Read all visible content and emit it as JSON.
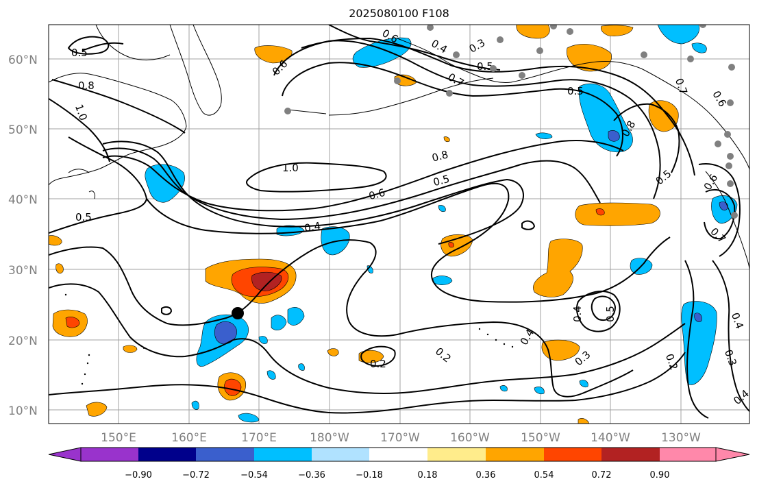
{
  "title": "2025080100 F108",
  "map": {
    "lat_labels": [
      "60°N",
      "50°N",
      "40°N",
      "30°N",
      "20°N",
      "10°N"
    ],
    "lon_labels": [
      "150°E",
      "160°E",
      "170°E",
      "180°W",
      "170°W",
      "160°W",
      "150°W",
      "140°W",
      "130°W"
    ],
    "contour_labels": [
      {
        "text": "0.5"
      },
      {
        "text": "0.8"
      },
      {
        "text": "1.0"
      },
      {
        "text": "0.6"
      },
      {
        "text": "0.6"
      },
      {
        "text": "0.4"
      },
      {
        "text": "0.3"
      },
      {
        "text": "0.5"
      },
      {
        "text": "0.7"
      },
      {
        "text": "0.5"
      },
      {
        "text": "0.8"
      },
      {
        "text": "0.7"
      },
      {
        "text": "0.6"
      },
      {
        "text": "1.0"
      },
      {
        "text": "0.8"
      },
      {
        "text": "0.5"
      },
      {
        "text": "0.6"
      },
      {
        "text": "0.4"
      },
      {
        "text": "0.5"
      },
      {
        "text": "0.5"
      },
      {
        "text": "0.6"
      },
      {
        "text": "0.7"
      },
      {
        "text": "0.4"
      },
      {
        "text": "0.5"
      },
      {
        "text": "0.4"
      },
      {
        "text": "0.3"
      },
      {
        "text": "0.2"
      },
      {
        "text": "0.2"
      },
      {
        "text": "0.2"
      },
      {
        "text": "0.4"
      },
      {
        "text": "0.3"
      },
      {
        "text": "0.4"
      }
    ]
  },
  "colorbar": {
    "ticks": [
      "−0.90",
      "−0.72",
      "−0.54",
      "−0.36",
      "−0.18",
      "0.18",
      "0.36",
      "0.54",
      "0.72",
      "0.90"
    ],
    "colors": [
      "#9933cc",
      "#00008b",
      "#3a5fcd",
      "#00bfff",
      "#b0e2ff",
      "#ffffff",
      "#ffec8b",
      "#ffa500",
      "#ff4500",
      "#b22222",
      "#ff88aa"
    ]
  }
}
